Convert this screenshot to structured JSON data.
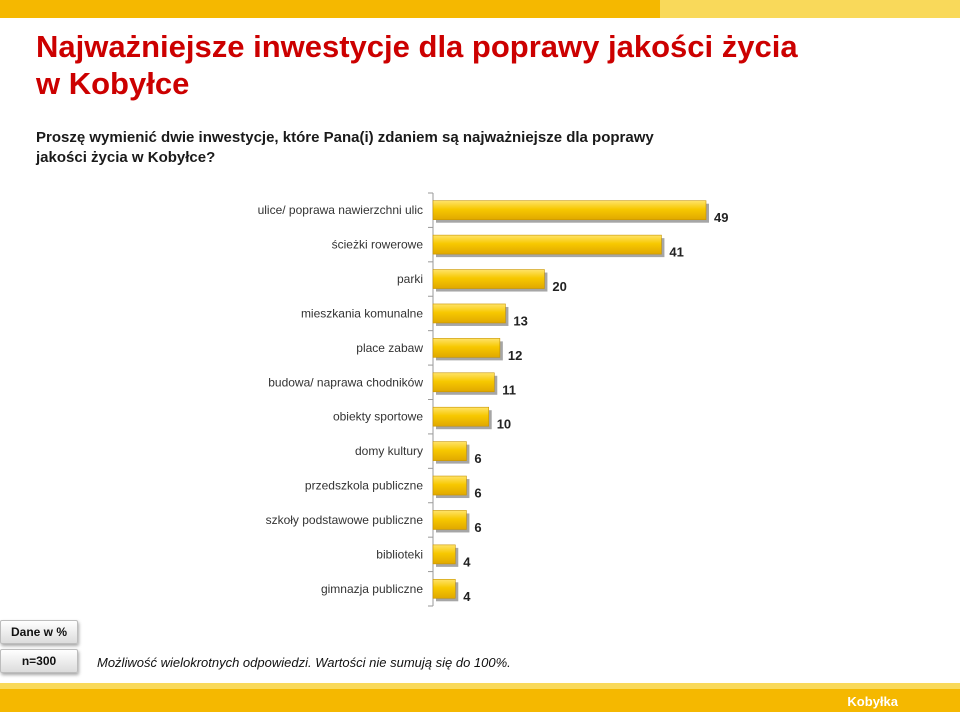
{
  "header": {
    "title_line1": "Najważniejsze inwestycje dla poprawy jakości życia",
    "title_line2": "w Kobyłce"
  },
  "question": {
    "line1": "Proszę wymienić dwie inwestycje, które Pana(i) zdaniem są najważniejsze dla poprawy",
    "line2": "jakości życia w Kobyłce?"
  },
  "chart_data": {
    "type": "bar",
    "orientation": "horizontal",
    "categories": [
      "ulice/ poprawa nawierzchni ulic",
      "ścieżki rowerowe",
      "parki",
      "mieszkania komunalne",
      "place zabaw",
      "budowa/ naprawa chodników",
      "obiekty sportowe",
      "domy kultury",
      "przedszkola publiczne",
      "szkoły podstawowe publiczne",
      "biblioteki",
      "gimnazja publiczne"
    ],
    "values": [
      49,
      41,
      20,
      13,
      12,
      11,
      10,
      6,
      6,
      6,
      4,
      4
    ],
    "xlim": [
      0,
      49
    ],
    "bar_color": "#f5c400",
    "grid": false
  },
  "badges": {
    "data_label": "Dane w %",
    "n_label": "n=300"
  },
  "footnote": "Możliwość wielokrotnych odpowiedzi. Wartości nie sumują się do 100%.",
  "footer": {
    "brand": "Kobyłka"
  },
  "colors": {
    "title": "#cc0000",
    "accent": "#f5b800",
    "accent_light": "#f9d95a"
  }
}
